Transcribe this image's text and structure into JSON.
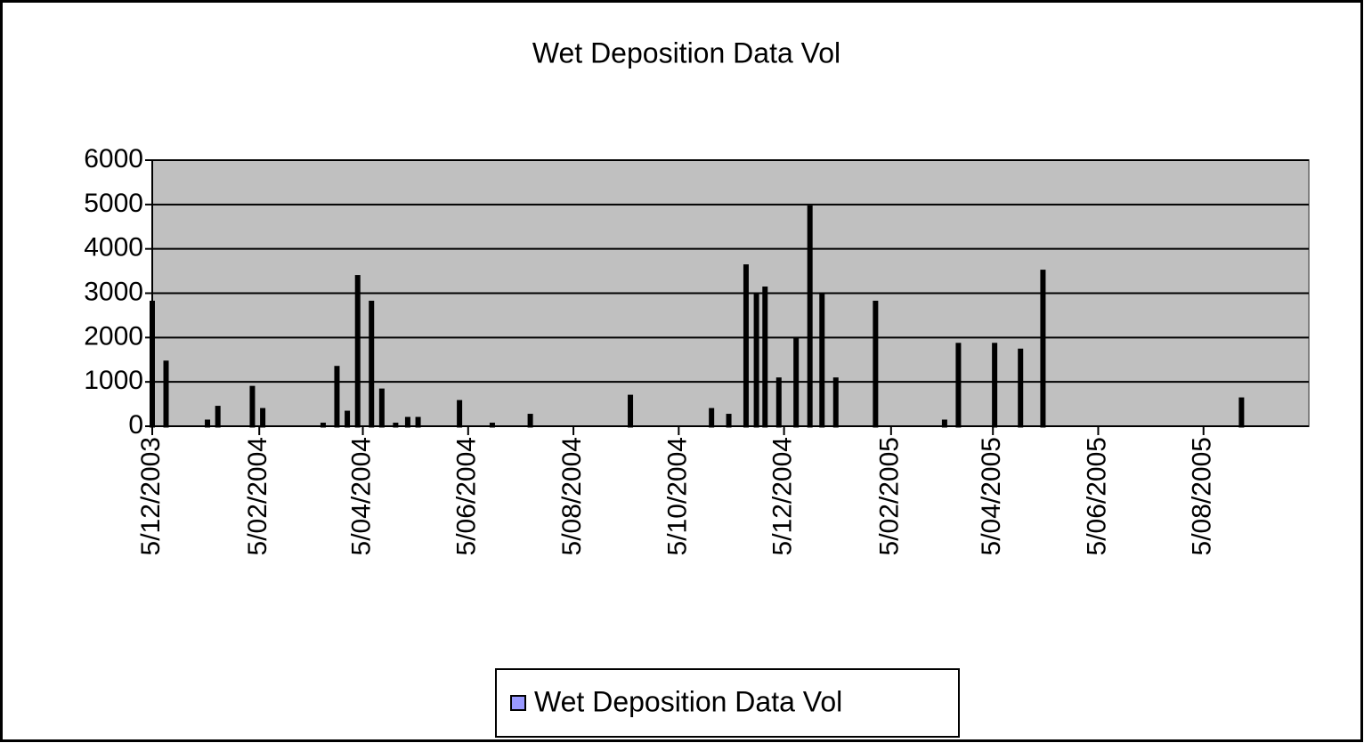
{
  "chart_data": {
    "type": "bar",
    "title": "Wet Deposition Data Vol",
    "x": [
      "2003-12-05",
      "2003-12-13",
      "2004-01-06",
      "2004-01-12",
      "2004-02-01",
      "2004-02-07",
      "2004-03-13",
      "2004-03-21",
      "2004-03-27",
      "2004-04-02",
      "2004-04-10",
      "2004-04-16",
      "2004-04-24",
      "2004-05-01",
      "2004-05-07",
      "2004-05-31",
      "2004-06-19",
      "2004-07-11",
      "2004-09-07",
      "2004-10-24",
      "2004-11-03",
      "2004-11-13",
      "2004-11-19",
      "2004-11-24",
      "2004-12-02",
      "2004-12-12",
      "2004-12-20",
      "2004-12-27",
      "2005-01-04",
      "2005-01-27",
      "2005-03-08",
      "2005-03-16",
      "2005-04-06",
      "2005-04-21",
      "2005-05-04",
      "2005-08-27"
    ],
    "series": [
      {
        "name": "Wet Deposition Data Vol",
        "color": "#9999ff",
        "values": [
          2800,
          1450,
          120,
          430,
          880,
          380,
          50,
          1330,
          320,
          3380,
          2800,
          820,
          50,
          180,
          180,
          560,
          50,
          250,
          680,
          380,
          250,
          3620,
          2950,
          3120,
          1070,
          1980,
          4950,
          2950,
          1070,
          2800,
          120,
          1850,
          1850,
          1720,
          3500,
          620
        ]
      }
    ],
    "xlim": [
      "2003-12-05",
      "2005-10-05"
    ],
    "xticks": [
      {
        "value": "2003-12-05",
        "label": "5/12/2003"
      },
      {
        "value": "2004-02-05",
        "label": "5/02/2004"
      },
      {
        "value": "2004-04-05",
        "label": "5/04/2004"
      },
      {
        "value": "2004-06-05",
        "label": "5/06/2004"
      },
      {
        "value": "2004-08-05",
        "label": "5/08/2004"
      },
      {
        "value": "2004-10-05",
        "label": "5/10/2004"
      },
      {
        "value": "2004-12-05",
        "label": "5/12/2004"
      },
      {
        "value": "2005-02-05",
        "label": "5/02/2005"
      },
      {
        "value": "2005-04-05",
        "label": "5/04/2005"
      },
      {
        "value": "2005-06-05",
        "label": "5/06/2005"
      },
      {
        "value": "2005-08-05",
        "label": "5/08/2005"
      }
    ],
    "ylim": [
      0,
      6000
    ],
    "yticks": [
      0,
      1000,
      2000,
      3000,
      4000,
      5000,
      6000
    ],
    "grid": true,
    "legend": "bottom"
  }
}
